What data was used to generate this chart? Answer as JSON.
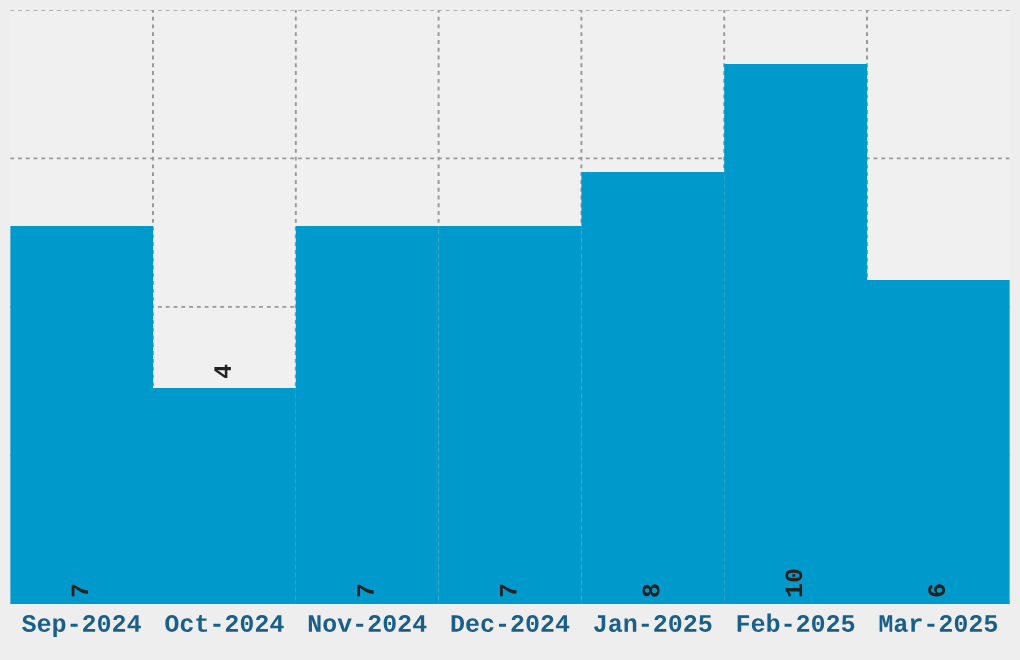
{
  "chart_data": {
    "type": "bar",
    "categories": [
      "Sep-2024",
      "Oct-2024",
      "Nov-2024",
      "Dec-2024",
      "Jan-2025",
      "Feb-2025",
      "Mar-2025"
    ],
    "values": [
      7,
      4,
      7,
      7,
      8,
      10,
      6
    ],
    "color": "#0099cc",
    "ylim": [
      0,
      11
    ],
    "yticks": [
      {
        "value": 0,
        "label": null
      },
      {
        "value": 2.75,
        "label": null
      },
      {
        "value": 5.5,
        "label": null
      },
      {
        "value": 8.25,
        "label": null
      },
      {
        "value": 11,
        "label": null
      }
    ],
    "grid": true,
    "data_labels": true,
    "tick_labels": "x"
  }
}
